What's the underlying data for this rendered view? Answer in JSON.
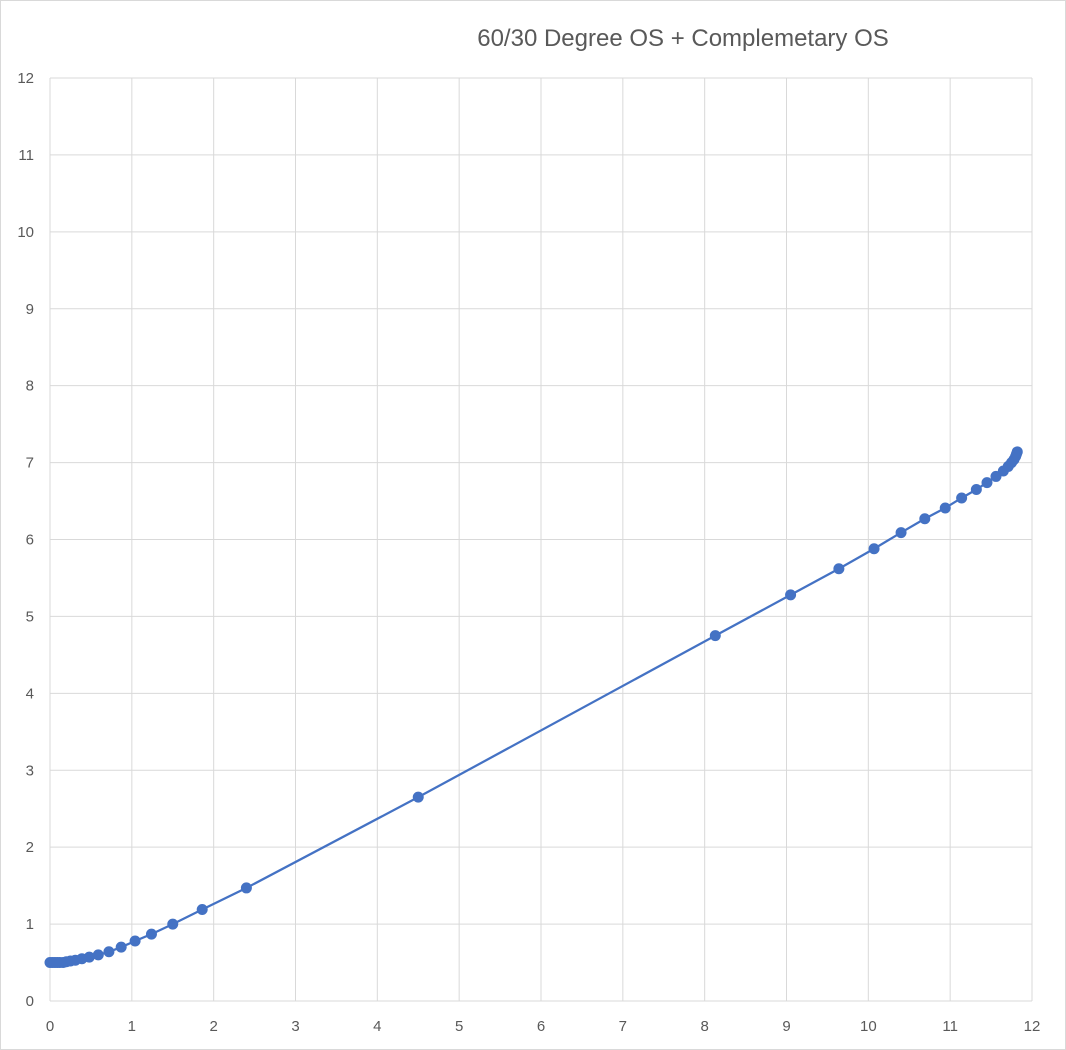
{
  "chart_data": {
    "type": "scatter",
    "title": "60/30 Degree OS + Complemetary OS",
    "xlabel": "",
    "ylabel": "",
    "xlim": [
      0,
      12
    ],
    "ylim": [
      0,
      12
    ],
    "xticks": [
      "0",
      "1",
      "2",
      "3",
      "4",
      "5",
      "6",
      "7",
      "8",
      "9",
      "10",
      "11",
      "12"
    ],
    "yticks": [
      "0",
      "1",
      "2",
      "3",
      "4",
      "5",
      "6",
      "7",
      "8",
      "9",
      "10",
      "11",
      "12"
    ],
    "grid": true,
    "legend": "none",
    "series": [
      {
        "color": "#4472c4",
        "line": true,
        "markers": true,
        "points": [
          [
            0.0,
            0.5
          ],
          [
            0.03,
            0.5
          ],
          [
            0.06,
            0.5
          ],
          [
            0.09,
            0.5
          ],
          [
            0.12,
            0.5
          ],
          [
            0.16,
            0.5
          ],
          [
            0.2,
            0.51
          ],
          [
            0.25,
            0.52
          ],
          [
            0.31,
            0.53
          ],
          [
            0.39,
            0.55
          ],
          [
            0.48,
            0.57
          ],
          [
            0.59,
            0.6
          ],
          [
            0.72,
            0.64
          ],
          [
            0.87,
            0.7
          ],
          [
            1.04,
            0.78
          ],
          [
            1.24,
            0.87
          ],
          [
            1.5,
            1.0
          ],
          [
            1.86,
            1.19
          ],
          [
            2.4,
            1.47
          ],
          [
            4.5,
            2.65
          ],
          [
            8.13,
            4.75
          ],
          [
            9.05,
            5.28
          ],
          [
            9.64,
            5.62
          ],
          [
            10.07,
            5.88
          ],
          [
            10.4,
            6.09
          ],
          [
            10.69,
            6.27
          ],
          [
            10.94,
            6.41
          ],
          [
            11.14,
            6.54
          ],
          [
            11.32,
            6.65
          ],
          [
            11.45,
            6.74
          ],
          [
            11.56,
            6.82
          ],
          [
            11.65,
            6.89
          ],
          [
            11.71,
            6.95
          ],
          [
            11.75,
            7.0
          ],
          [
            11.78,
            7.04
          ],
          [
            11.8,
            7.08
          ],
          [
            11.81,
            7.11
          ],
          [
            11.82,
            7.14
          ]
        ]
      }
    ]
  }
}
